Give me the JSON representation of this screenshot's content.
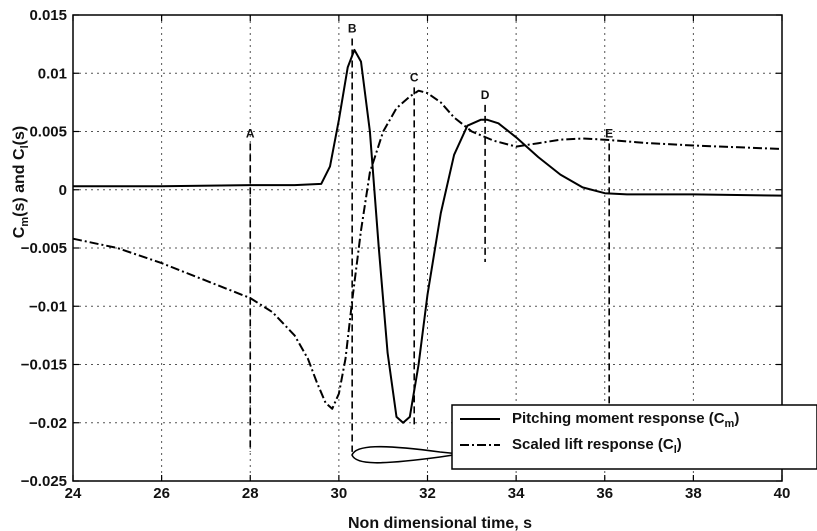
{
  "chart_data": {
    "type": "line",
    "xlabel": "Non dimensional time, s",
    "ylabel": "C_m(s) and C_l(s)",
    "xlim": [
      24,
      40
    ],
    "ylim": [
      -0.025,
      0.015
    ],
    "x_ticks": [
      "24",
      "26",
      "28",
      "30",
      "32",
      "34",
      "36",
      "38",
      "40"
    ],
    "y_ticks": [
      "0.015",
      "0.01",
      "0.005",
      "0",
      "−0.005",
      "−0.01",
      "−0.015",
      "−0.02",
      "−0.025"
    ],
    "grid": true,
    "legend_position": "bottom-right",
    "series": [
      {
        "name": "Pitching moment response (C_m)",
        "style": "solid",
        "color": "#000000",
        "x": [
          24,
          26,
          28,
          29,
          29.6,
          29.8,
          30.0,
          30.2,
          30.35,
          30.5,
          30.7,
          30.9,
          31.1,
          31.3,
          31.45,
          31.6,
          31.8,
          32.0,
          32.3,
          32.6,
          32.9,
          33.2,
          33.35,
          33.6,
          34.0,
          34.5,
          35.0,
          35.5,
          36.0,
          36.5,
          37.0,
          38.0,
          40.0
        ],
        "y": [
          0.0003,
          0.0003,
          0.0004,
          0.0004,
          0.0005,
          0.002,
          0.006,
          0.0105,
          0.012,
          0.011,
          0.005,
          -0.005,
          -0.014,
          -0.0195,
          -0.02,
          -0.0195,
          -0.015,
          -0.009,
          -0.002,
          0.003,
          0.0055,
          0.006,
          0.006,
          0.0057,
          0.0045,
          0.0028,
          0.0013,
          0.0002,
          -0.0003,
          -0.0004,
          -0.0004,
          -0.0004,
          -0.0005
        ]
      },
      {
        "name": "Scaled lift response (C_l)",
        "style": "dashdot",
        "color": "#000000",
        "x": [
          24,
          25,
          26,
          27,
          28,
          28.5,
          29.0,
          29.3,
          29.5,
          29.7,
          29.85,
          30.0,
          30.15,
          30.3,
          30.5,
          30.7,
          31.0,
          31.3,
          31.6,
          31.8,
          32.0,
          32.3,
          32.6,
          33.0,
          33.5,
          34.0,
          34.5,
          35.0,
          35.5,
          36.0,
          37.0,
          38.0,
          40.0
        ],
        "y": [
          -0.0042,
          -0.005,
          -0.0063,
          -0.0078,
          -0.0093,
          -0.0105,
          -0.0125,
          -0.0145,
          -0.0165,
          -0.0183,
          -0.0188,
          -0.0175,
          -0.0145,
          -0.0095,
          -0.0035,
          0.0015,
          0.005,
          0.007,
          0.008,
          0.0085,
          0.0083,
          0.0075,
          0.0062,
          0.005,
          0.0042,
          0.0037,
          0.004,
          0.0043,
          0.0044,
          0.0043,
          0.004,
          0.0038,
          0.0035
        ]
      }
    ],
    "markers": [
      {
        "label": "A",
        "x": 28.0,
        "y_top": 0.0045,
        "y_bottom": -0.0225
      },
      {
        "label": "B",
        "x": 30.3,
        "y_top": 0.0135,
        "y_bottom": -0.0225
      },
      {
        "label": "C",
        "x": 31.7,
        "y_top": 0.0093,
        "y_bottom": -0.0205
      },
      {
        "label": "D",
        "x": 33.3,
        "y_top": 0.0078,
        "y_bottom": -0.0062
      },
      {
        "label": "E",
        "x": 36.1,
        "y_top": 0.0045,
        "y_bottom": -0.0225
      }
    ],
    "legend": [
      {
        "label": "Pitching moment response (C_m)",
        "style": "solid"
      },
      {
        "label": "Scaled lift response (C_l)",
        "style": "dashdot"
      }
    ]
  }
}
